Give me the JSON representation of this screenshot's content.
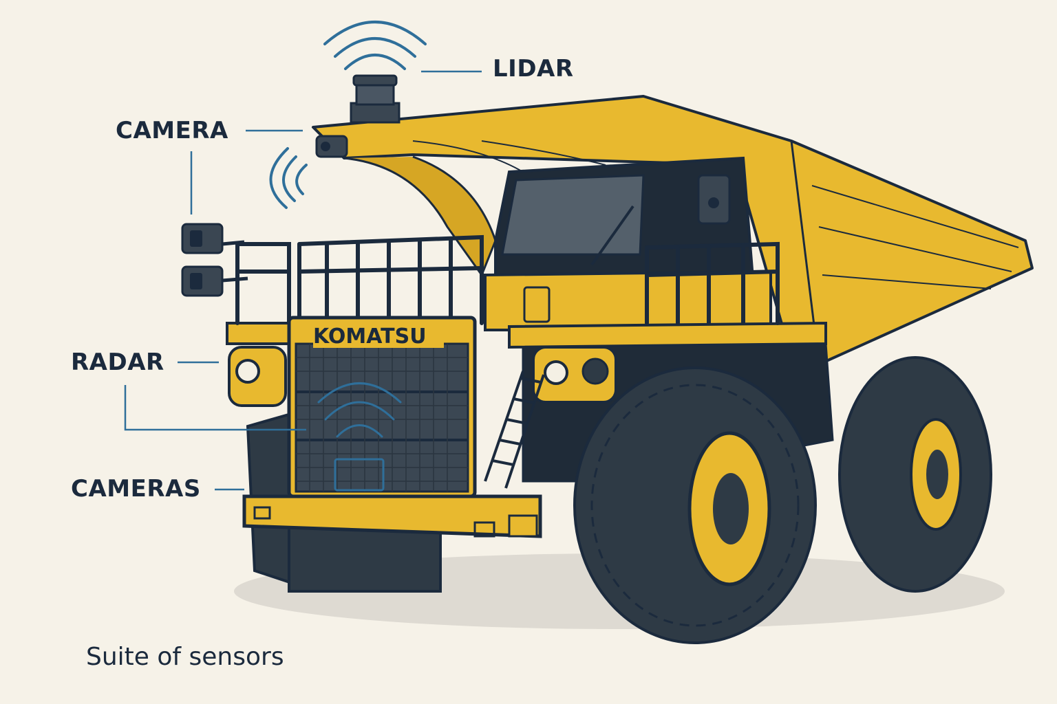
{
  "brand": "KOMATSU",
  "labels": {
    "lidar": "LIDAR",
    "camera": "CAMERA",
    "radar": "RADAR",
    "cameras": "CAMERAS"
  },
  "caption": "Suite of sensors",
  "colors": {
    "background": "#f6f2e8",
    "truck_yellow": "#e8b92f",
    "outline": "#1b2a3d",
    "tire": "#2e3a45",
    "signal_blue": "#2f6f9a"
  }
}
